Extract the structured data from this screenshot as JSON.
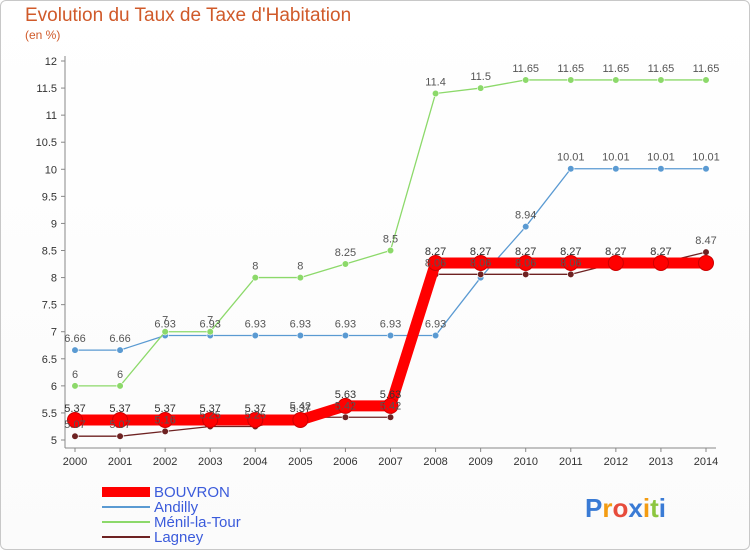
{
  "header": {
    "title": "Evolution du Taux de Taxe d'Habitation",
    "subtitle": "(en %)"
  },
  "logo": {
    "text": "Proxiti"
  },
  "chart_data": {
    "type": "line",
    "title": "Evolution du Taux de Taxe d'Habitation",
    "subtitle": "(en %)",
    "x": [
      2000,
      2001,
      2002,
      2003,
      2004,
      2005,
      2006,
      2007,
      2008,
      2009,
      2010,
      2011,
      2012,
      2013,
      2014
    ],
    "ylim": [
      5,
      12
    ],
    "yticks": [
      5,
      5.5,
      6,
      6.5,
      7,
      7.5,
      8,
      8.5,
      9,
      9.5,
      10,
      10.5,
      11,
      11.5,
      12
    ],
    "grid": false,
    "legend_position": "bottom-left",
    "series": [
      {
        "name": "BOUVRON",
        "color": "#ff0000",
        "values": [
          5.37,
          5.37,
          5.37,
          5.37,
          5.37,
          5.37,
          5.63,
          5.63,
          8.27,
          8.27,
          8.27,
          8.27,
          8.27,
          8.27,
          8.27
        ],
        "labels": [
          "5.37",
          "5.37",
          "5.37",
          "5.37",
          "5.37",
          "5.37",
          "5.63",
          "5.63",
          "8.27",
          "8.27",
          "8.27",
          "8.27",
          "8.27",
          "8.27",
          ""
        ]
      },
      {
        "name": "Andilly",
        "color": "#5a9ad2",
        "values": [
          6.66,
          6.66,
          6.93,
          6.93,
          6.93,
          6.93,
          6.93,
          6.93,
          6.93,
          8.0,
          8.94,
          10.01,
          10.01,
          10.01,
          10.01
        ],
        "labels": [
          "6.66",
          "6.66",
          "6.93",
          "6.93",
          "6.93",
          "6.93",
          "6.93",
          "6.93",
          "6.93",
          "",
          "8.94",
          "10.01",
          "10.01",
          "10.01",
          "10.01"
        ]
      },
      {
        "name": "Ménil-la-Tour",
        "color": "#8cd96a",
        "values": [
          6,
          6,
          7,
          7,
          8,
          8,
          8.25,
          8.5,
          11.4,
          11.5,
          11.65,
          11.65,
          11.65,
          11.65,
          11.65
        ],
        "labels": [
          "6",
          "6",
          "7",
          "7",
          "8",
          "8",
          "8.25",
          "8.5",
          "11.4",
          "11.5",
          "11.65",
          "11.65",
          "11.65",
          "11.65",
          "11.65"
        ]
      },
      {
        "name": "Lagney",
        "color": "#6e2222",
        "values": [
          5.07,
          5.07,
          5.16,
          5.25,
          5.25,
          5.42,
          5.42,
          5.42,
          8.06,
          8.06,
          8.06,
          8.06,
          8.27,
          8.27,
          8.47
        ],
        "labels": [
          "5.07",
          "5.07",
          "5.16",
          "5.25",
          "5.25",
          "5.42",
          "5.42",
          "5.42",
          "8.06",
          "8.06",
          "8.06",
          "8.06",
          "8.27",
          "8.27",
          "8.47"
        ]
      }
    ]
  }
}
